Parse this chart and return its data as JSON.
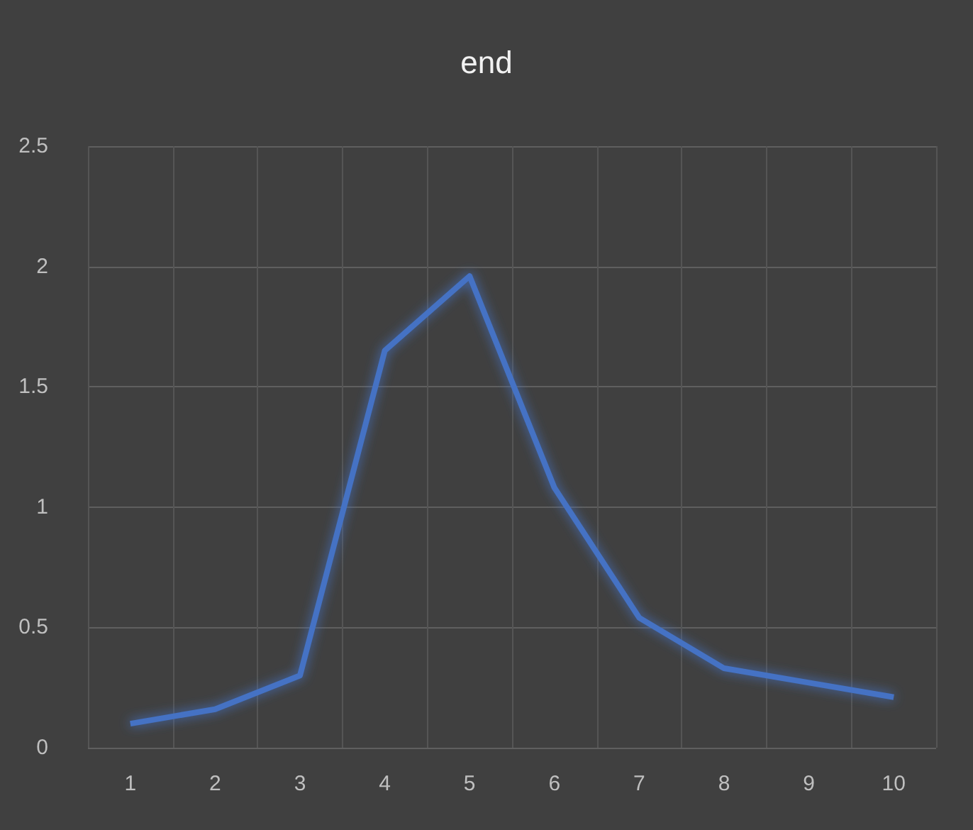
{
  "chart_data": {
    "type": "line",
    "title": "end",
    "categories": [
      "1",
      "2",
      "3",
      "4",
      "5",
      "6",
      "7",
      "8",
      "9",
      "10"
    ],
    "series": [
      {
        "color": "#4472c4",
        "values": [
          0.1,
          0.16,
          0.3,
          1.65,
          1.96,
          1.08,
          0.54,
          0.33,
          0.27,
          0.21
        ]
      }
    ],
    "ylim": [
      0,
      2.5
    ],
    "yticks": [
      0,
      0.5,
      1,
      1.5,
      2,
      2.5
    ],
    "grid": true,
    "marker": "none",
    "line_style": "solid"
  }
}
